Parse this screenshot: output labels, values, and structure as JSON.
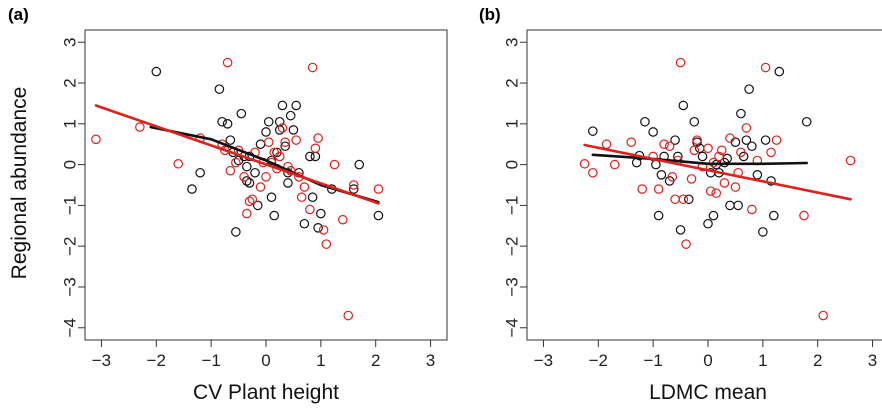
{
  "figure": {
    "ylabel": "Regional abundance",
    "colors": {
      "black_series": "#111111",
      "red_series": "#e0201b",
      "axis": "#333333"
    }
  },
  "chart_data": [
    {
      "type": "scatter",
      "panel_label": "(a)",
      "xlabel": "CV Plant height",
      "ylabel": "Regional abundance",
      "xlim": [
        -3.3,
        3.3
      ],
      "ylim": [
        -4.3,
        3.3
      ],
      "xticks": [
        -3,
        -2,
        -1,
        0,
        1,
        2,
        3
      ],
      "yticks": [
        -4,
        -3,
        -2,
        -1,
        0,
        1,
        2,
        3
      ],
      "grid": false,
      "series": [
        {
          "color": "#111111",
          "points": [
            [
              -2.0,
              2.28
            ],
            [
              -0.85,
              1.85
            ],
            [
              -1.35,
              -0.6
            ],
            [
              -1.2,
              -0.2
            ],
            [
              -0.7,
              1.0
            ],
            [
              -0.65,
              0.6
            ],
            [
              -0.55,
              -1.65
            ],
            [
              -0.5,
              0.1
            ],
            [
              -0.45,
              1.25
            ],
            [
              -0.4,
              0.2
            ],
            [
              -0.35,
              -0.4
            ],
            [
              -0.3,
              0.2
            ],
            [
              -0.2,
              -0.2
            ],
            [
              -0.15,
              -1.0
            ],
            [
              -0.1,
              0.5
            ],
            [
              0.0,
              0.8
            ],
            [
              0.05,
              1.05
            ],
            [
              0.1,
              -0.8
            ],
            [
              0.15,
              -1.25
            ],
            [
              0.2,
              0.3
            ],
            [
              0.25,
              1.05
            ],
            [
              0.25,
              0.85
            ],
            [
              0.3,
              1.45
            ],
            [
              0.35,
              0.45
            ],
            [
              0.4,
              -0.2
            ],
            [
              0.45,
              1.2
            ],
            [
              0.5,
              0.85
            ],
            [
              0.55,
              1.45
            ],
            [
              0.6,
              -0.2
            ],
            [
              0.7,
              -1.45
            ],
            [
              0.8,
              0.2
            ],
            [
              0.85,
              -0.8
            ],
            [
              0.9,
              0.2
            ],
            [
              1.0,
              -1.2
            ],
            [
              1.2,
              -0.6
            ],
            [
              1.6,
              -0.6
            ],
            [
              1.7,
              0.0
            ],
            [
              2.05,
              -1.25
            ],
            [
              -0.35,
              -0.05
            ],
            [
              -0.3,
              -0.45
            ],
            [
              0.1,
              0.1
            ],
            [
              0.4,
              -0.45
            ],
            [
              -0.8,
              1.05
            ],
            [
              -0.6,
              0.3
            ],
            [
              0.95,
              -1.55
            ]
          ],
          "fit": [
            [
              -2.1,
              0.92
            ],
            [
              -1.0,
              0.62
            ],
            [
              0.0,
              0.1
            ],
            [
              1.0,
              -0.5
            ],
            [
              2.05,
              -0.92
            ]
          ]
        },
        {
          "color": "#e0201b",
          "points": [
            [
              -3.1,
              0.62
            ],
            [
              -2.3,
              0.92
            ],
            [
              -1.6,
              0.02
            ],
            [
              -1.2,
              0.65
            ],
            [
              -0.8,
              0.5
            ],
            [
              -0.75,
              0.35
            ],
            [
              -0.7,
              2.5
            ],
            [
              -0.65,
              -0.15
            ],
            [
              -0.5,
              0.35
            ],
            [
              -0.4,
              -0.3
            ],
            [
              -0.35,
              -1.2
            ],
            [
              -0.3,
              -0.9
            ],
            [
              -0.25,
              -0.85
            ],
            [
              -0.2,
              0.3
            ],
            [
              0.0,
              -0.3
            ],
            [
              0.05,
              0.55
            ],
            [
              0.1,
              0.05
            ],
            [
              0.15,
              0.3
            ],
            [
              0.2,
              -0.1
            ],
            [
              0.3,
              0.9
            ],
            [
              0.35,
              0.55
            ],
            [
              0.4,
              -0.05
            ],
            [
              0.45,
              -0.15
            ],
            [
              0.55,
              0.6
            ],
            [
              0.6,
              -0.3
            ],
            [
              0.7,
              -0.55
            ],
            [
              0.8,
              -1.1
            ],
            [
              0.85,
              2.38
            ],
            [
              0.9,
              0.4
            ],
            [
              0.95,
              0.65
            ],
            [
              1.05,
              -1.6
            ],
            [
              1.1,
              -1.95
            ],
            [
              1.25,
              0.0
            ],
            [
              1.4,
              -1.35
            ],
            [
              1.5,
              -3.7
            ],
            [
              1.6,
              -0.5
            ],
            [
              2.05,
              -0.6
            ],
            [
              -0.05,
              0.05
            ],
            [
              0.25,
              0.2
            ],
            [
              -0.55,
              0.05
            ],
            [
              0.65,
              -0.8
            ],
            [
              -0.1,
              -0.55
            ]
          ],
          "fit": [
            [
              -3.1,
              1.45
            ],
            [
              2.05,
              -0.95
            ]
          ]
        }
      ]
    },
    {
      "type": "scatter",
      "panel_label": "(b)",
      "xlabel": "LDMC mean",
      "ylabel": "",
      "xlim": [
        -3.3,
        3.3
      ],
      "ylim": [
        -4.3,
        3.3
      ],
      "xticks": [
        -3,
        -2,
        -1,
        0,
        1,
        2,
        3
      ],
      "yticks": [
        -4,
        -3,
        -2,
        -1,
        0,
        1,
        2,
        3
      ],
      "grid": false,
      "series": [
        {
          "color": "#111111",
          "points": [
            [
              -2.1,
              0.82
            ],
            [
              -1.3,
              0.05
            ],
            [
              -1.25,
              0.22
            ],
            [
              -1.15,
              1.05
            ],
            [
              -1.0,
              0.8
            ],
            [
              -0.95,
              0.0
            ],
            [
              -0.9,
              -1.25
            ],
            [
              -0.85,
              -0.25
            ],
            [
              -0.8,
              0.2
            ],
            [
              -0.7,
              -0.4
            ],
            [
              -0.6,
              0.6
            ],
            [
              -0.55,
              0.2
            ],
            [
              -0.5,
              -1.6
            ],
            [
              -0.45,
              1.45
            ],
            [
              -0.35,
              -0.85
            ],
            [
              -0.25,
              1.05
            ],
            [
              -0.2,
              0.55
            ],
            [
              -0.1,
              0.2
            ],
            [
              0.0,
              -1.45
            ],
            [
              0.05,
              -0.2
            ],
            [
              0.1,
              -1.25
            ],
            [
              0.15,
              0.0
            ],
            [
              0.2,
              -0.2
            ],
            [
              0.3,
              0.05
            ],
            [
              0.4,
              -1.0
            ],
            [
              0.5,
              0.55
            ],
            [
              0.55,
              -1.0
            ],
            [
              0.6,
              1.25
            ],
            [
              0.65,
              0.2
            ],
            [
              0.7,
              0.6
            ],
            [
              0.75,
              1.85
            ],
            [
              0.8,
              0.45
            ],
            [
              0.9,
              -0.25
            ],
            [
              1.0,
              -1.65
            ],
            [
              1.05,
              0.6
            ],
            [
              1.15,
              -0.4
            ],
            [
              1.2,
              -1.25
            ],
            [
              1.3,
              2.28
            ],
            [
              1.8,
              1.05
            ],
            [
              -0.15,
              0.4
            ],
            [
              0.35,
              0.15
            ]
          ],
          "fit": [
            [
              -2.1,
              0.24
            ],
            [
              -1.0,
              0.14
            ],
            [
              0.0,
              0.02
            ],
            [
              1.0,
              0.02
            ],
            [
              1.8,
              0.04
            ]
          ]
        },
        {
          "color": "#e0201b",
          "points": [
            [
              -2.25,
              0.02
            ],
            [
              -2.1,
              -0.2
            ],
            [
              -1.85,
              0.5
            ],
            [
              -1.7,
              0.0
            ],
            [
              -1.4,
              0.55
            ],
            [
              -1.2,
              -0.6
            ],
            [
              -1.0,
              0.2
            ],
            [
              -0.9,
              -0.6
            ],
            [
              -0.8,
              0.5
            ],
            [
              -0.7,
              0.45
            ],
            [
              -0.6,
              -0.85
            ],
            [
              -0.5,
              2.5
            ],
            [
              -0.45,
              -0.85
            ],
            [
              -0.4,
              -1.95
            ],
            [
              -0.3,
              -0.35
            ],
            [
              -0.2,
              0.6
            ],
            [
              -0.1,
              -0.05
            ],
            [
              0.0,
              0.4
            ],
            [
              0.05,
              -0.65
            ],
            [
              0.15,
              -0.7
            ],
            [
              0.2,
              0.2
            ],
            [
              0.25,
              0.35
            ],
            [
              0.3,
              -0.45
            ],
            [
              0.4,
              0.65
            ],
            [
              0.5,
              -0.55
            ],
            [
              0.6,
              0.3
            ],
            [
              0.7,
              0.9
            ],
            [
              0.8,
              -1.1
            ],
            [
              0.9,
              0.1
            ],
            [
              1.05,
              2.38
            ],
            [
              1.15,
              0.3
            ],
            [
              1.25,
              0.6
            ],
            [
              1.75,
              -1.25
            ],
            [
              2.1,
              -3.7
            ],
            [
              2.6,
              0.1
            ],
            [
              -0.55,
              0.1
            ],
            [
              0.1,
              0.05
            ],
            [
              -0.25,
              0.35
            ],
            [
              0.55,
              -0.2
            ],
            [
              -0.65,
              -0.3
            ]
          ],
          "fit": [
            [
              -2.25,
              0.48
            ],
            [
              2.6,
              -0.85
            ]
          ]
        }
      ]
    }
  ]
}
